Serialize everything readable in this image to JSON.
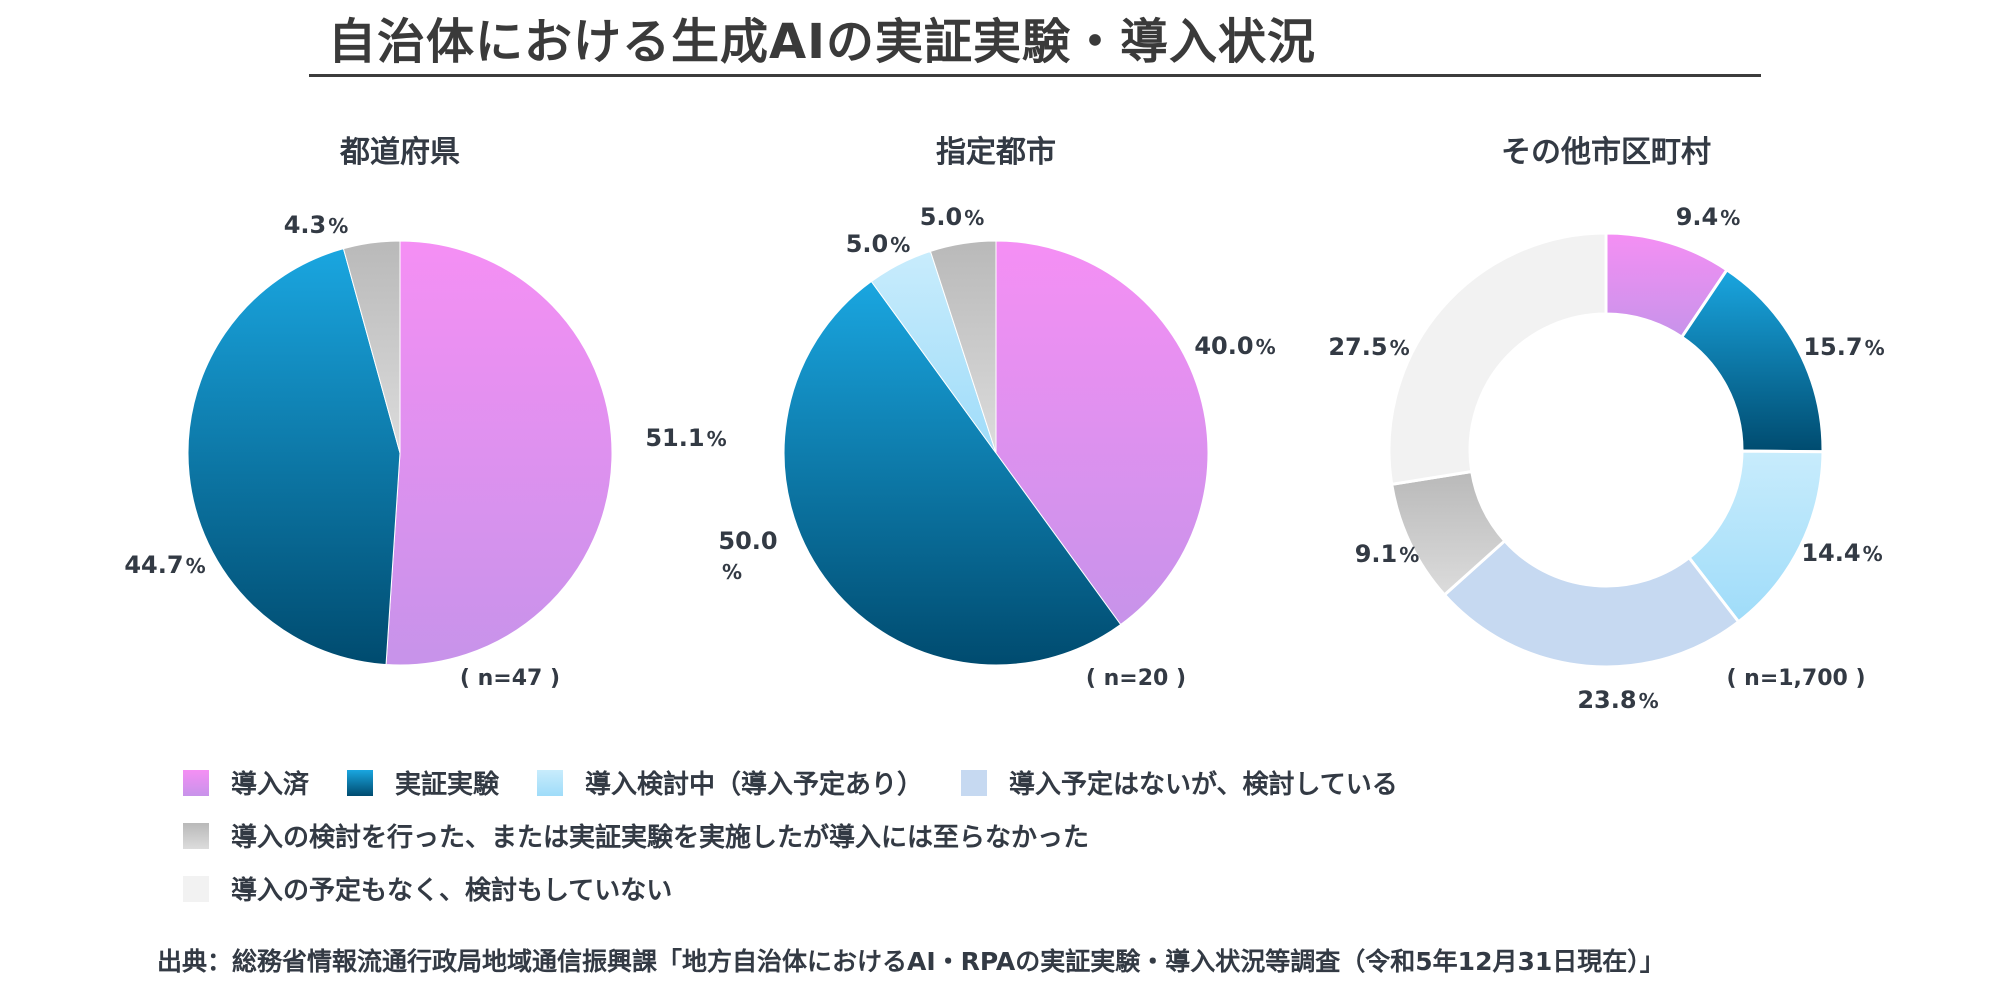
{
  "title": "自治体における生成AIの実証実験・導入状況",
  "source": "出典：総務省情報流通行政局地域通信振興課「地方自治体におけるAI・RPAの実証実験・導入状況等調査（令和5年12月31日現在）」",
  "percent_sign": "%",
  "legend": [
    {
      "key": "deployed",
      "label": "導入済"
    },
    {
      "key": "trial",
      "label": "実証実験"
    },
    {
      "key": "considering",
      "label": "導入検討中（導入予定あり）"
    },
    {
      "key": "no_plan_considering",
      "label": "導入予定はないが、検討している"
    },
    {
      "key": "abandoned",
      "label": "導入の検討を行った、または実証実験を実施したが導入には至らなかった"
    },
    {
      "key": "none",
      "label": "導入の予定もなく、検討もしていない"
    }
  ],
  "colors": {
    "deployed": [
      "#f58ff4",
      "#c793ea"
    ],
    "trial": [
      "#1aa6e0",
      "#004b6f"
    ],
    "considering": [
      "#c8ecfc",
      "#9fdcf9"
    ],
    "no_plan_considering": [
      "#c6d9f1",
      "#c6d9f1"
    ],
    "abandoned": [
      "#b9b9b9",
      "#dcdcdc"
    ],
    "none": [
      "#f2f2f2",
      "#f2f2f2"
    ]
  },
  "chart_data": [
    {
      "type": "pie",
      "title": "都道府県",
      "n_label": "( n=47 )",
      "slices": [
        {
          "key": "deployed",
          "value": 51.1,
          "label": "51.1"
        },
        {
          "key": "trial",
          "value": 44.7,
          "label": "44.7"
        },
        {
          "key": "abandoned",
          "value": 4.3,
          "label": "4.3"
        }
      ]
    },
    {
      "type": "pie",
      "title": "指定都市",
      "n_label": "( n=20 )",
      "slices": [
        {
          "key": "deployed",
          "value": 40.0,
          "label": "40.0"
        },
        {
          "key": "trial",
          "value": 50.0,
          "label": "50.0"
        },
        {
          "key": "considering",
          "value": 5.0,
          "label": "5.0"
        },
        {
          "key": "abandoned",
          "value": 5.0,
          "label": "5.0"
        }
      ]
    },
    {
      "type": "donut",
      "title": "その他市区町村",
      "n_label": "( n=1,700 )",
      "slices": [
        {
          "key": "deployed",
          "value": 9.4,
          "label": "9.4"
        },
        {
          "key": "trial",
          "value": 15.7,
          "label": "15.7"
        },
        {
          "key": "considering",
          "value": 14.4,
          "label": "14.4"
        },
        {
          "key": "no_plan_considering",
          "value": 23.8,
          "label": "23.8"
        },
        {
          "key": "abandoned",
          "value": 9.1,
          "label": "9.1"
        },
        {
          "key": "none",
          "value": 27.5,
          "label": "27.5"
        }
      ]
    }
  ]
}
